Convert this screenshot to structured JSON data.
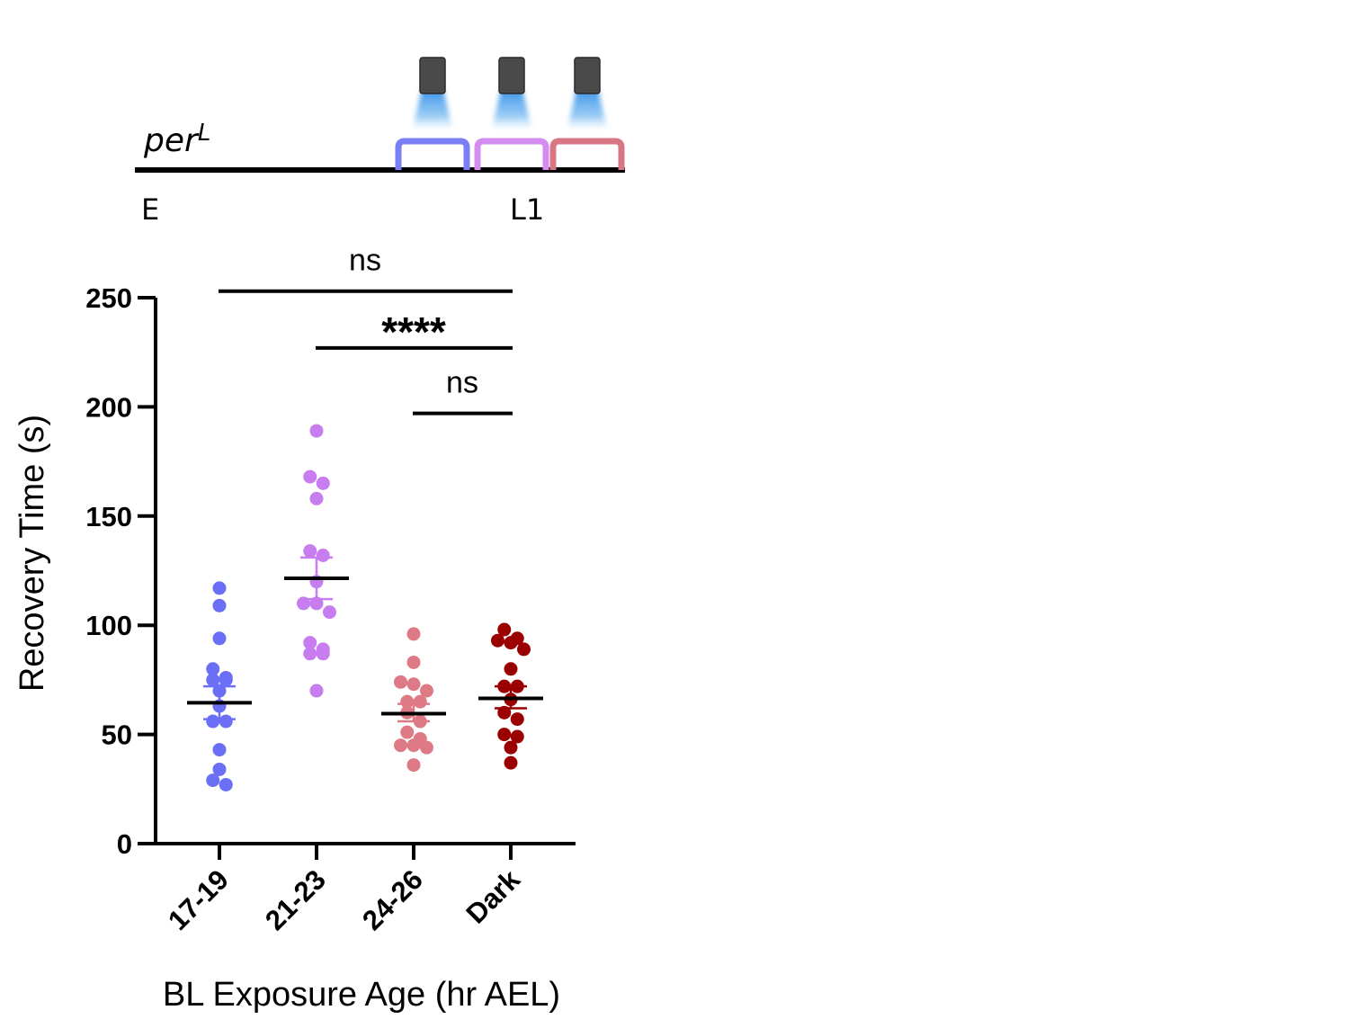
{
  "schematic": {
    "genotype_base": "per",
    "genotype_sup": "L",
    "start_label": "E",
    "end_label": "L1",
    "windows": [
      {
        "color": "#7b7ff5"
      },
      {
        "color": "#d48cf0"
      },
      {
        "color": "#d87683"
      }
    ]
  },
  "chart_data": {
    "type": "scatter",
    "xlabel": "BL Exposure Age (hr AEL)",
    "ylabel": "Recovery Time (s)",
    "ylim": [
      0,
      250
    ],
    "yticks": [
      0,
      50,
      100,
      150,
      200,
      250
    ],
    "categories": [
      "17-19",
      "21-23",
      "24-26",
      "Dark"
    ],
    "series": [
      {
        "color": "#6b6ff5",
        "values": [
          117,
          109,
          94,
          80,
          76,
          75,
          75,
          70,
          63,
          56,
          56,
          43,
          34,
          29,
          27
        ],
        "mean": 64.5,
        "sem_low": 57,
        "sem_high": 72
      },
      {
        "color": "#c77cf0",
        "values": [
          189,
          168,
          165,
          158,
          134,
          132,
          120,
          110,
          110,
          106,
          92,
          89,
          87,
          87,
          70
        ],
        "mean": 121.5,
        "sem_low": 112,
        "sem_high": 131
      },
      {
        "color": "#dd7a86",
        "values": [
          96,
          83,
          74,
          73,
          70,
          65,
          65,
          60,
          56,
          51,
          48,
          45,
          45,
          44,
          36
        ],
        "mean": 59.5,
        "sem_low": 56,
        "sem_high": 64
      },
      {
        "color": "#9b0000",
        "values": [
          98,
          94,
          93,
          92,
          89,
          80,
          72,
          72,
          66,
          60,
          57,
          50,
          49,
          44,
          37
        ],
        "mean": 66.5,
        "sem_low": 62,
        "sem_high": 72
      }
    ],
    "comparisons": [
      {
        "from": "17-19",
        "to": "Dark",
        "label": "ns",
        "y": 253
      },
      {
        "from": "21-23",
        "to": "Dark",
        "label": "****",
        "y": 227
      },
      {
        "from": "24-26",
        "to": "Dark",
        "label": "ns",
        "y": 197
      }
    ]
  }
}
